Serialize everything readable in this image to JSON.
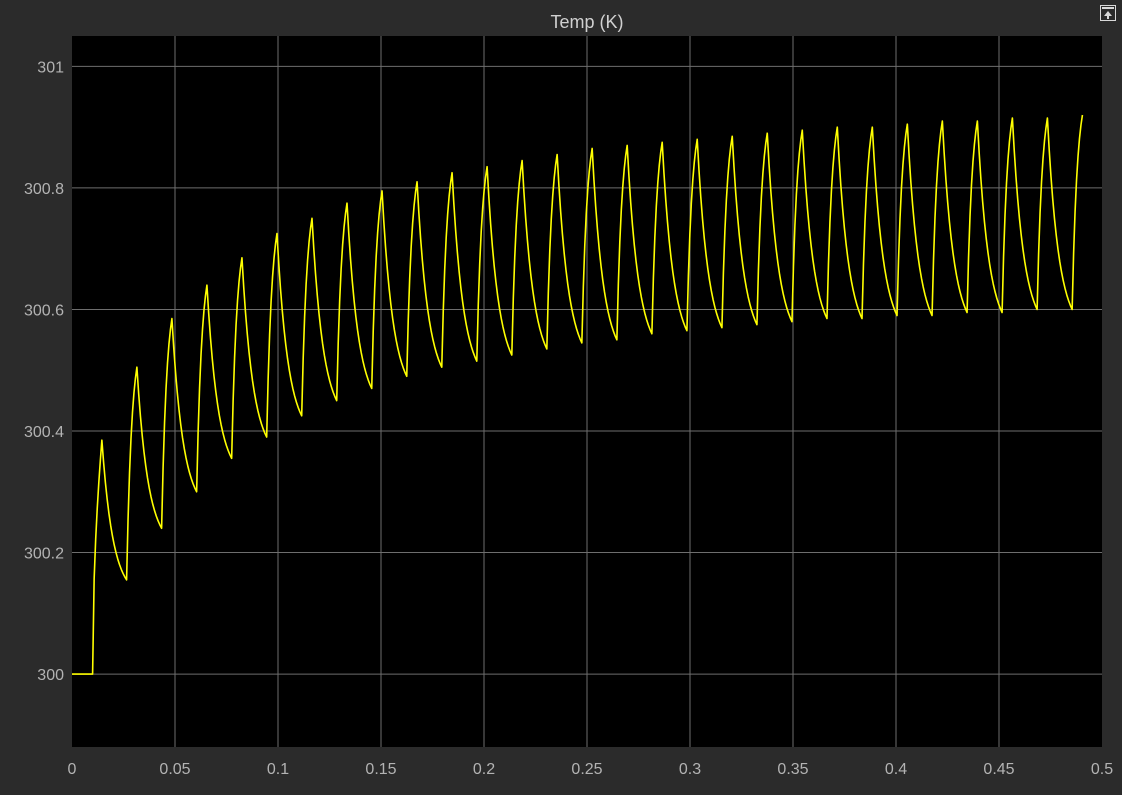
{
  "chart_data": {
    "type": "line",
    "title": "Temp (K)",
    "xlabel": "",
    "ylabel": "",
    "xlim": [
      0,
      0.5
    ],
    "ylim": [
      299.88,
      301.05
    ],
    "xticks": [
      0,
      0.05,
      0.1,
      0.15,
      0.2,
      0.25,
      0.3,
      0.35,
      0.4,
      0.45,
      0.5
    ],
    "xtick_labels": [
      "0",
      "0.05",
      "0.1",
      "0.15",
      "0.2",
      "0.25",
      "0.3",
      "0.35",
      "0.4",
      "0.45",
      "0.5"
    ],
    "yticks": [
      300,
      300.2,
      300.4,
      300.6,
      300.8,
      301
    ],
    "ytick_labels": [
      "300",
      "300.2",
      "300.4",
      "300.6",
      "300.8",
      "301"
    ],
    "grid": true,
    "colors": {
      "background": "#000000",
      "frame": "#2b2b2b",
      "grid": "#6e6e6e",
      "line": "#ffff00",
      "text": "#b3b3b3"
    },
    "series": [
      {
        "initial_value": 300.0,
        "step_time": 0.01,
        "peaks": [
          [
            0.0145,
            300.385
          ],
          [
            0.0315,
            300.505
          ],
          [
            0.0485,
            300.585
          ],
          [
            0.0655,
            300.64
          ],
          [
            0.0825,
            300.685
          ],
          [
            0.0995,
            300.725
          ],
          [
            0.1165,
            300.75
          ],
          [
            0.1335,
            300.775
          ],
          [
            0.1505,
            300.795
          ],
          [
            0.1675,
            300.81
          ],
          [
            0.1845,
            300.825
          ],
          [
            0.2015,
            300.835
          ],
          [
            0.2185,
            300.845
          ],
          [
            0.2355,
            300.855
          ],
          [
            0.2525,
            300.865
          ],
          [
            0.2695,
            300.87
          ],
          [
            0.2865,
            300.875
          ],
          [
            0.3035,
            300.88
          ],
          [
            0.3205,
            300.885
          ],
          [
            0.3375,
            300.89
          ],
          [
            0.3545,
            300.895
          ],
          [
            0.3715,
            300.9
          ],
          [
            0.3885,
            300.9
          ],
          [
            0.4055,
            300.905
          ],
          [
            0.4225,
            300.91
          ],
          [
            0.4395,
            300.91
          ],
          [
            0.4565,
            300.915
          ],
          [
            0.4735,
            300.915
          ],
          [
            0.4905,
            300.92
          ],
          [
            0.5,
            300.92
          ]
        ],
        "troughs": [
          [
            0.0265,
            300.155
          ],
          [
            0.0435,
            300.24
          ],
          [
            0.0605,
            300.3
          ],
          [
            0.0775,
            300.355
          ],
          [
            0.0945,
            300.39
          ],
          [
            0.1115,
            300.425
          ],
          [
            0.1285,
            300.45
          ],
          [
            0.1455,
            300.47
          ],
          [
            0.1625,
            300.49
          ],
          [
            0.1795,
            300.505
          ],
          [
            0.1965,
            300.515
          ],
          [
            0.2135,
            300.525
          ],
          [
            0.2305,
            300.535
          ],
          [
            0.2475,
            300.545
          ],
          [
            0.2645,
            300.55
          ],
          [
            0.2815,
            300.56
          ],
          [
            0.2985,
            300.565
          ],
          [
            0.3155,
            300.57
          ],
          [
            0.3325,
            300.575
          ],
          [
            0.3495,
            300.58
          ],
          [
            0.3665,
            300.585
          ],
          [
            0.3835,
            300.585
          ],
          [
            0.4005,
            300.59
          ],
          [
            0.4175,
            300.59
          ],
          [
            0.4345,
            300.595
          ],
          [
            0.4515,
            300.595
          ],
          [
            0.4685,
            300.6
          ],
          [
            0.4855,
            300.6
          ]
        ]
      }
    ]
  }
}
